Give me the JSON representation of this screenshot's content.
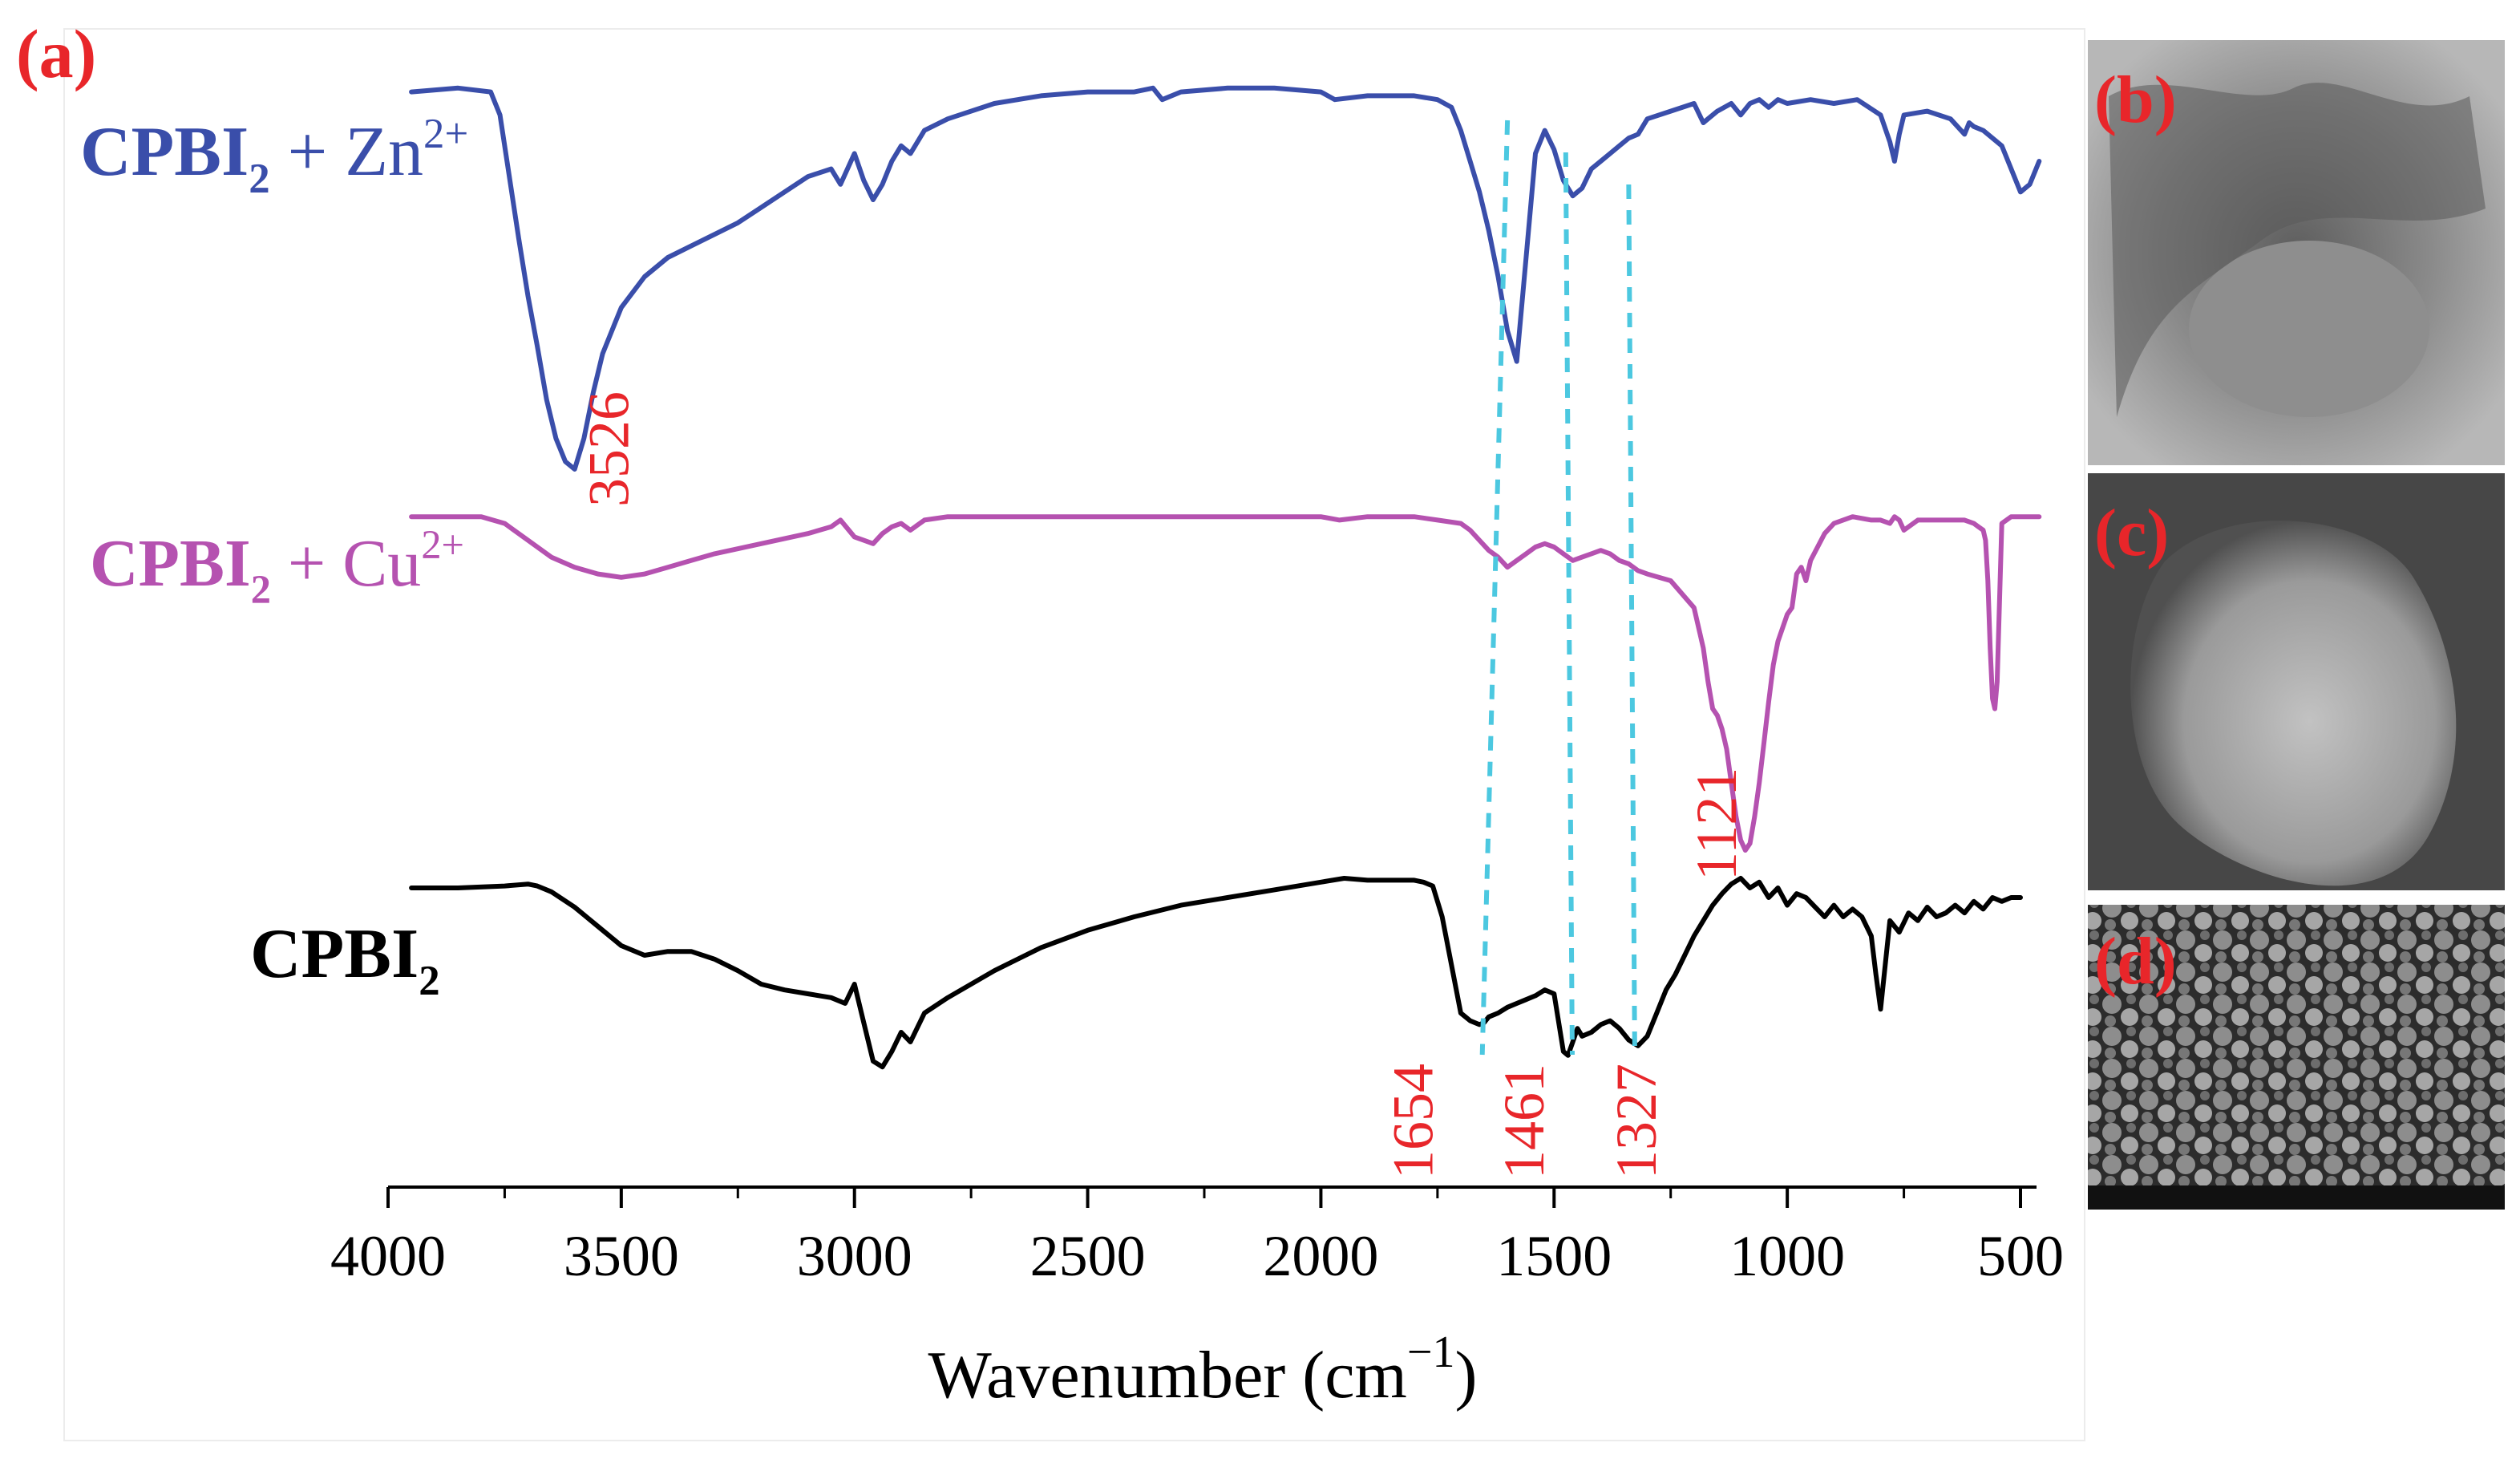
{
  "panels": {
    "a": "(a)",
    "b": "(b)",
    "c": "(c)",
    "d": "(d)"
  },
  "colors": {
    "zn": "#3a4eaa",
    "cu": "#b552b0",
    "base": "#000000",
    "annotation": "#e8262a",
    "guide": "#4cc8e0"
  },
  "chart_data": {
    "type": "line",
    "title": "",
    "xlabel_main": "Wavenumber (cm",
    "xlabel_sup": "−1",
    "xlabel_close": ")",
    "ylabel": "",
    "xlim": [
      4000,
      500
    ],
    "x_reversed": true,
    "xticks": [
      4000,
      3500,
      3000,
      2500,
      2000,
      1500,
      1000,
      500
    ],
    "xtick_labels": [
      "4000",
      "3500",
      "3000",
      "2500",
      "2000",
      "1500",
      "1000",
      "500"
    ],
    "y_units": "transmittance (arbitrary, vertically offset)",
    "legend_placement": "inline labels at left of each trace",
    "series": [
      {
        "id": "zn",
        "label_main": "CPBI",
        "label_sub": "2",
        "label_rest": " + Zn",
        "label_sup": "2+",
        "color": "#3a4eaa",
        "x": [
          3950,
          3850,
          3780,
          3760,
          3720,
          3700,
          3680,
          3660,
          3640,
          3620,
          3600,
          3580,
          3560,
          3540,
          3520,
          3500,
          3450,
          3400,
          3350,
          3300,
          3250,
          3200,
          3150,
          3100,
          3050,
          3030,
          3000,
          2980,
          2960,
          2940,
          2920,
          2900,
          2880,
          2850,
          2800,
          2700,
          2600,
          2500,
          2400,
          2360,
          2340,
          2300,
          2200,
          2100,
          2000,
          1970,
          1900,
          1800,
          1750,
          1720,
          1700,
          1680,
          1660,
          1640,
          1620,
          1600,
          1580,
          1560,
          1540,
          1520,
          1500,
          1480,
          1460,
          1440,
          1420,
          1400,
          1380,
          1360,
          1340,
          1320,
          1300,
          1250,
          1200,
          1180,
          1150,
          1120,
          1100,
          1080,
          1060,
          1040,
          1020,
          1000,
          950,
          900,
          850,
          800,
          780,
          770,
          760,
          750,
          700,
          650,
          620,
          610,
          600,
          580,
          560,
          540,
          520,
          500,
          480,
          460
        ],
        "y": [
          0.98,
          0.99,
          0.98,
          0.92,
          0.6,
          0.45,
          0.32,
          0.18,
          0.08,
          0.02,
          0.0,
          0.08,
          0.2,
          0.3,
          0.36,
          0.42,
          0.5,
          0.55,
          0.58,
          0.61,
          0.64,
          0.68,
          0.72,
          0.76,
          0.78,
          0.74,
          0.82,
          0.75,
          0.7,
          0.74,
          0.8,
          0.84,
          0.82,
          0.88,
          0.91,
          0.95,
          0.97,
          0.98,
          0.98,
          0.99,
          0.96,
          0.98,
          0.99,
          0.99,
          0.98,
          0.96,
          0.97,
          0.97,
          0.96,
          0.94,
          0.88,
          0.8,
          0.72,
          0.62,
          0.5,
          0.36,
          0.28,
          0.55,
          0.82,
          0.88,
          0.83,
          0.75,
          0.71,
          0.73,
          0.78,
          0.8,
          0.82,
          0.84,
          0.86,
          0.87,
          0.91,
          0.93,
          0.95,
          0.9,
          0.93,
          0.95,
          0.92,
          0.95,
          0.96,
          0.94,
          0.96,
          0.95,
          0.96,
          0.95,
          0.96,
          0.92,
          0.85,
          0.8,
          0.87,
          0.92,
          0.93,
          0.91,
          0.87,
          0.9,
          0.89,
          0.88,
          0.86,
          0.84,
          0.78,
          0.72,
          0.74,
          0.8
        ]
      },
      {
        "id": "cu",
        "label_main": "CPBI",
        "label_sub": "2",
        "label_rest": " + Cu",
        "label_sup": "2+",
        "color": "#b552b0",
        "x": [
          3950,
          3800,
          3750,
          3700,
          3650,
          3600,
          3550,
          3500,
          3450,
          3400,
          3350,
          3300,
          3200,
          3100,
          3050,
          3030,
          3000,
          2980,
          2960,
          2940,
          2920,
          2900,
          2880,
          2850,
          2800,
          2700,
          2600,
          2500,
          2400,
          2300,
          2200,
          2100,
          2000,
          1960,
          1900,
          1800,
          1750,
          1700,
          1680,
          1660,
          1640,
          1620,
          1600,
          1580,
          1560,
          1540,
          1520,
          1500,
          1480,
          1460,
          1440,
          1420,
          1400,
          1380,
          1360,
          1340,
          1320,
          1300,
          1250,
          1200,
          1180,
          1170,
          1160,
          1150,
          1140,
          1130,
          1120,
          1110,
          1100,
          1090,
          1080,
          1070,
          1060,
          1050,
          1040,
          1030,
          1020,
          1000,
          990,
          980,
          970,
          960,
          950,
          920,
          900,
          860,
          820,
          800,
          780,
          770,
          760,
          750,
          720,
          700,
          680,
          660,
          640,
          620,
          600,
          590,
          580,
          575,
          570,
          565,
          560,
          555,
          550,
          540,
          520,
          500,
          480,
          460
        ],
        "y": [
          0.99,
          0.99,
          0.97,
          0.92,
          0.87,
          0.84,
          0.82,
          0.81,
          0.82,
          0.84,
          0.86,
          0.88,
          0.91,
          0.94,
          0.96,
          0.98,
          0.93,
          0.92,
          0.91,
          0.94,
          0.96,
          0.97,
          0.95,
          0.98,
          0.99,
          0.99,
          0.99,
          0.99,
          0.99,
          0.99,
          0.99,
          0.99,
          0.99,
          0.98,
          0.99,
          0.99,
          0.98,
          0.97,
          0.95,
          0.92,
          0.89,
          0.87,
          0.84,
          0.86,
          0.88,
          0.9,
          0.91,
          0.9,
          0.88,
          0.86,
          0.87,
          0.88,
          0.89,
          0.88,
          0.86,
          0.85,
          0.83,
          0.82,
          0.8,
          0.72,
          0.6,
          0.5,
          0.42,
          0.4,
          0.36,
          0.3,
          0.2,
          0.1,
          0.03,
          0.0,
          0.02,
          0.1,
          0.2,
          0.32,
          0.44,
          0.55,
          0.62,
          0.7,
          0.72,
          0.82,
          0.84,
          0.8,
          0.86,
          0.94,
          0.97,
          0.99,
          0.98,
          0.98,
          0.97,
          0.99,
          0.98,
          0.95,
          0.98,
          0.98,
          0.98,
          0.98,
          0.98,
          0.98,
          0.97,
          0.96,
          0.95,
          0.92,
          0.8,
          0.6,
          0.45,
          0.42,
          0.5,
          0.97,
          0.99,
          0.99,
          0.99,
          0.99
        ]
      },
      {
        "id": "base",
        "label_main": "CPBI",
        "label_sub": "2",
        "label_rest": "",
        "label_sup": "",
        "color": "#000000",
        "x": [
          3950,
          3850,
          3750,
          3700,
          3680,
          3650,
          3600,
          3550,
          3500,
          3450,
          3400,
          3350,
          3300,
          3250,
          3200,
          3150,
          3100,
          3050,
          3020,
          3000,
          2980,
          2960,
          2940,
          2920,
          2900,
          2880,
          2850,
          2800,
          2700,
          2600,
          2500,
          2400,
          2300,
          2200,
          2100,
          2000,
          1950,
          1900,
          1850,
          1800,
          1780,
          1760,
          1740,
          1720,
          1700,
          1680,
          1660,
          1650,
          1640,
          1620,
          1600,
          1580,
          1560,
          1540,
          1520,
          1500,
          1480,
          1470,
          1460,
          1450,
          1440,
          1420,
          1400,
          1380,
          1360,
          1340,
          1320,
          1300,
          1280,
          1260,
          1240,
          1220,
          1200,
          1180,
          1160,
          1140,
          1120,
          1100,
          1080,
          1060,
          1040,
          1020,
          1000,
          980,
          960,
          940,
          920,
          900,
          880,
          860,
          840,
          820,
          810,
          800,
          790,
          780,
          760,
          740,
          720,
          700,
          680,
          660,
          640,
          620,
          600,
          580,
          560,
          540,
          520,
          500
        ],
        "y": [
          0.95,
          0.95,
          0.96,
          0.97,
          0.96,
          0.93,
          0.85,
          0.75,
          0.65,
          0.6,
          0.62,
          0.62,
          0.58,
          0.52,
          0.45,
          0.42,
          0.4,
          0.38,
          0.35,
          0.45,
          0.25,
          0.05,
          0.02,
          0.1,
          0.2,
          0.15,
          0.3,
          0.38,
          0.52,
          0.64,
          0.73,
          0.8,
          0.86,
          0.9,
          0.94,
          0.98,
          1.0,
          0.99,
          0.99,
          0.99,
          0.98,
          0.96,
          0.8,
          0.55,
          0.3,
          0.26,
          0.24,
          0.25,
          0.28,
          0.3,
          0.33,
          0.35,
          0.37,
          0.39,
          0.42,
          0.4,
          0.1,
          0.08,
          0.15,
          0.22,
          0.18,
          0.2,
          0.24,
          0.26,
          0.22,
          0.16,
          0.13,
          0.18,
          0.3,
          0.42,
          0.5,
          0.6,
          0.7,
          0.78,
          0.86,
          0.92,
          0.97,
          1.0,
          0.95,
          0.98,
          0.9,
          0.95,
          0.86,
          0.92,
          0.9,
          0.85,
          0.8,
          0.86,
          0.8,
          0.84,
          0.8,
          0.7,
          0.5,
          0.32,
          0.55,
          0.78,
          0.72,
          0.82,
          0.78,
          0.85,
          0.8,
          0.82,
          0.86,
          0.82,
          0.88,
          0.84,
          0.9,
          0.88,
          0.9,
          0.9
        ]
      }
    ],
    "annotations": [
      {
        "label": "3526",
        "series": "zn",
        "x": 3526
      },
      {
        "label": "1121",
        "series": "cu",
        "x": 1121
      },
      {
        "label": "1654",
        "series": "base",
        "x": 1654
      },
      {
        "label": "1461",
        "series": "base",
        "x": 1461
      },
      {
        "label": "1327",
        "series": "base",
        "x": 1327
      }
    ],
    "guide_lines": [
      {
        "x_top": 1600,
        "x_bottom": 1654
      },
      {
        "x_top": 1475,
        "x_bottom": 1461
      },
      {
        "x_top": 1340,
        "x_bottom": 1327
      }
    ]
  }
}
